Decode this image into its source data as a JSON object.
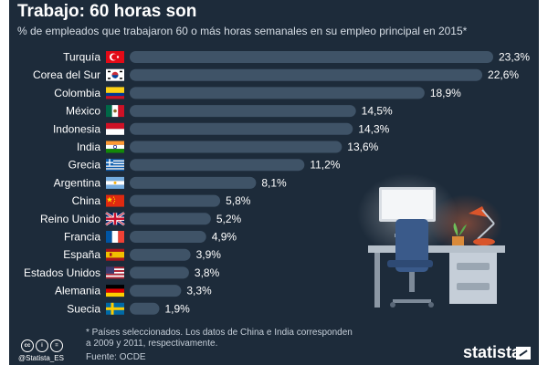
{
  "title": "Trabajo: 60 horas son",
  "subtitle": "% de empleados que trabajaron 60 o más horas semanales en su empleo principal en 2015*",
  "footnote": "* Países seleccionados. Los datos de China e India corresponden a 2009 y 2011, respectivamente.",
  "source": "Fuente: OCDE",
  "handle": "@Statista_ES",
  "brand": "statista",
  "colors": {
    "background": "#1d2b3a",
    "bar": "#3f5367",
    "text": "#ffffff"
  },
  "chart_data": {
    "type": "bar",
    "orientation": "horizontal",
    "title": "Trabajo: 60 horas son",
    "subtitle": "% de empleados que trabajaron 60 o más horas semanales en su empleo principal en 2015*",
    "xlabel": "",
    "ylabel": "",
    "xlim": [
      0,
      23.3
    ],
    "grid": false,
    "legend": "none",
    "categories": [
      "Turquía",
      "Corea del Sur",
      "Colombia",
      "México",
      "Indonesia",
      "India",
      "Grecia",
      "Argentina",
      "China",
      "Reino Unido",
      "Francia",
      "España",
      "Estados Unidos",
      "Alemania",
      "Suecia"
    ],
    "values": [
      23.3,
      22.6,
      18.9,
      14.5,
      14.3,
      13.6,
      11.2,
      8.1,
      5.8,
      5.2,
      4.9,
      3.9,
      3.8,
      3.3,
      1.9
    ],
    "value_labels": [
      "23,3%",
      "22,6%",
      "18,9%",
      "14,5%",
      "14,3%",
      "13,6%",
      "11,2%",
      "8,1%",
      "5,8%",
      "5,2%",
      "4,9%",
      "3,9%",
      "3,8%",
      "3,3%",
      "1,9%"
    ],
    "flag_icons": [
      "flag-turkey-icon",
      "flag-south-korea-icon",
      "flag-colombia-icon",
      "flag-mexico-icon",
      "flag-indonesia-icon",
      "flag-india-icon",
      "flag-greece-icon",
      "flag-argentina-icon",
      "flag-china-icon",
      "flag-united-kingdom-icon",
      "flag-france-icon",
      "flag-spain-icon",
      "flag-united-states-icon",
      "flag-germany-icon",
      "flag-sweden-icon"
    ]
  }
}
